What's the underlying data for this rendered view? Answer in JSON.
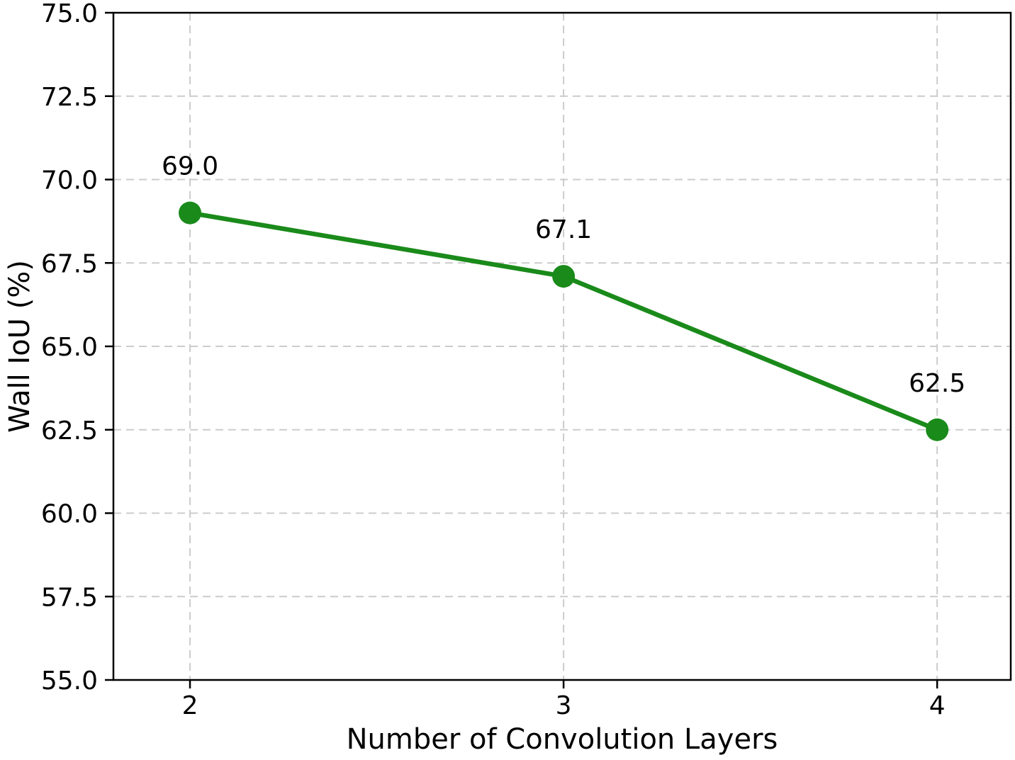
{
  "figure": {
    "background": "#ffffff"
  },
  "chart_data": {
    "type": "line",
    "title": "",
    "xlabel": "Number of Convolution Layers",
    "ylabel": "Wall IoU (%)",
    "x": [
      2,
      3,
      4
    ],
    "series": [
      {
        "name": "Wall IoU",
        "values": [
          69.0,
          67.1,
          62.5
        ]
      }
    ],
    "point_labels": [
      "69.0",
      "67.1",
      "62.5"
    ],
    "xticks": [
      2,
      3,
      4
    ],
    "xtick_labels": [
      "2",
      "3",
      "4"
    ],
    "yticks": [
      55.0,
      57.5,
      60.0,
      62.5,
      65.0,
      67.5,
      70.0,
      72.5,
      75.0
    ],
    "ytick_labels": [
      "55.0",
      "57.5",
      "60.0",
      "62.5",
      "65.0",
      "67.5",
      "70.0",
      "72.5",
      "75.0"
    ],
    "xlim": [
      1.795,
      4.197
    ],
    "ylim": [
      55.0,
      75.0
    ],
    "grid": true,
    "grid_style": "dashed",
    "legend_position": "none",
    "line_color": "#1a8a1a",
    "marker": "circle",
    "marker_color": "#1a8a1a",
    "grid_color": "#cccccc",
    "axis_color": "#000000",
    "text_color": "#000000"
  }
}
